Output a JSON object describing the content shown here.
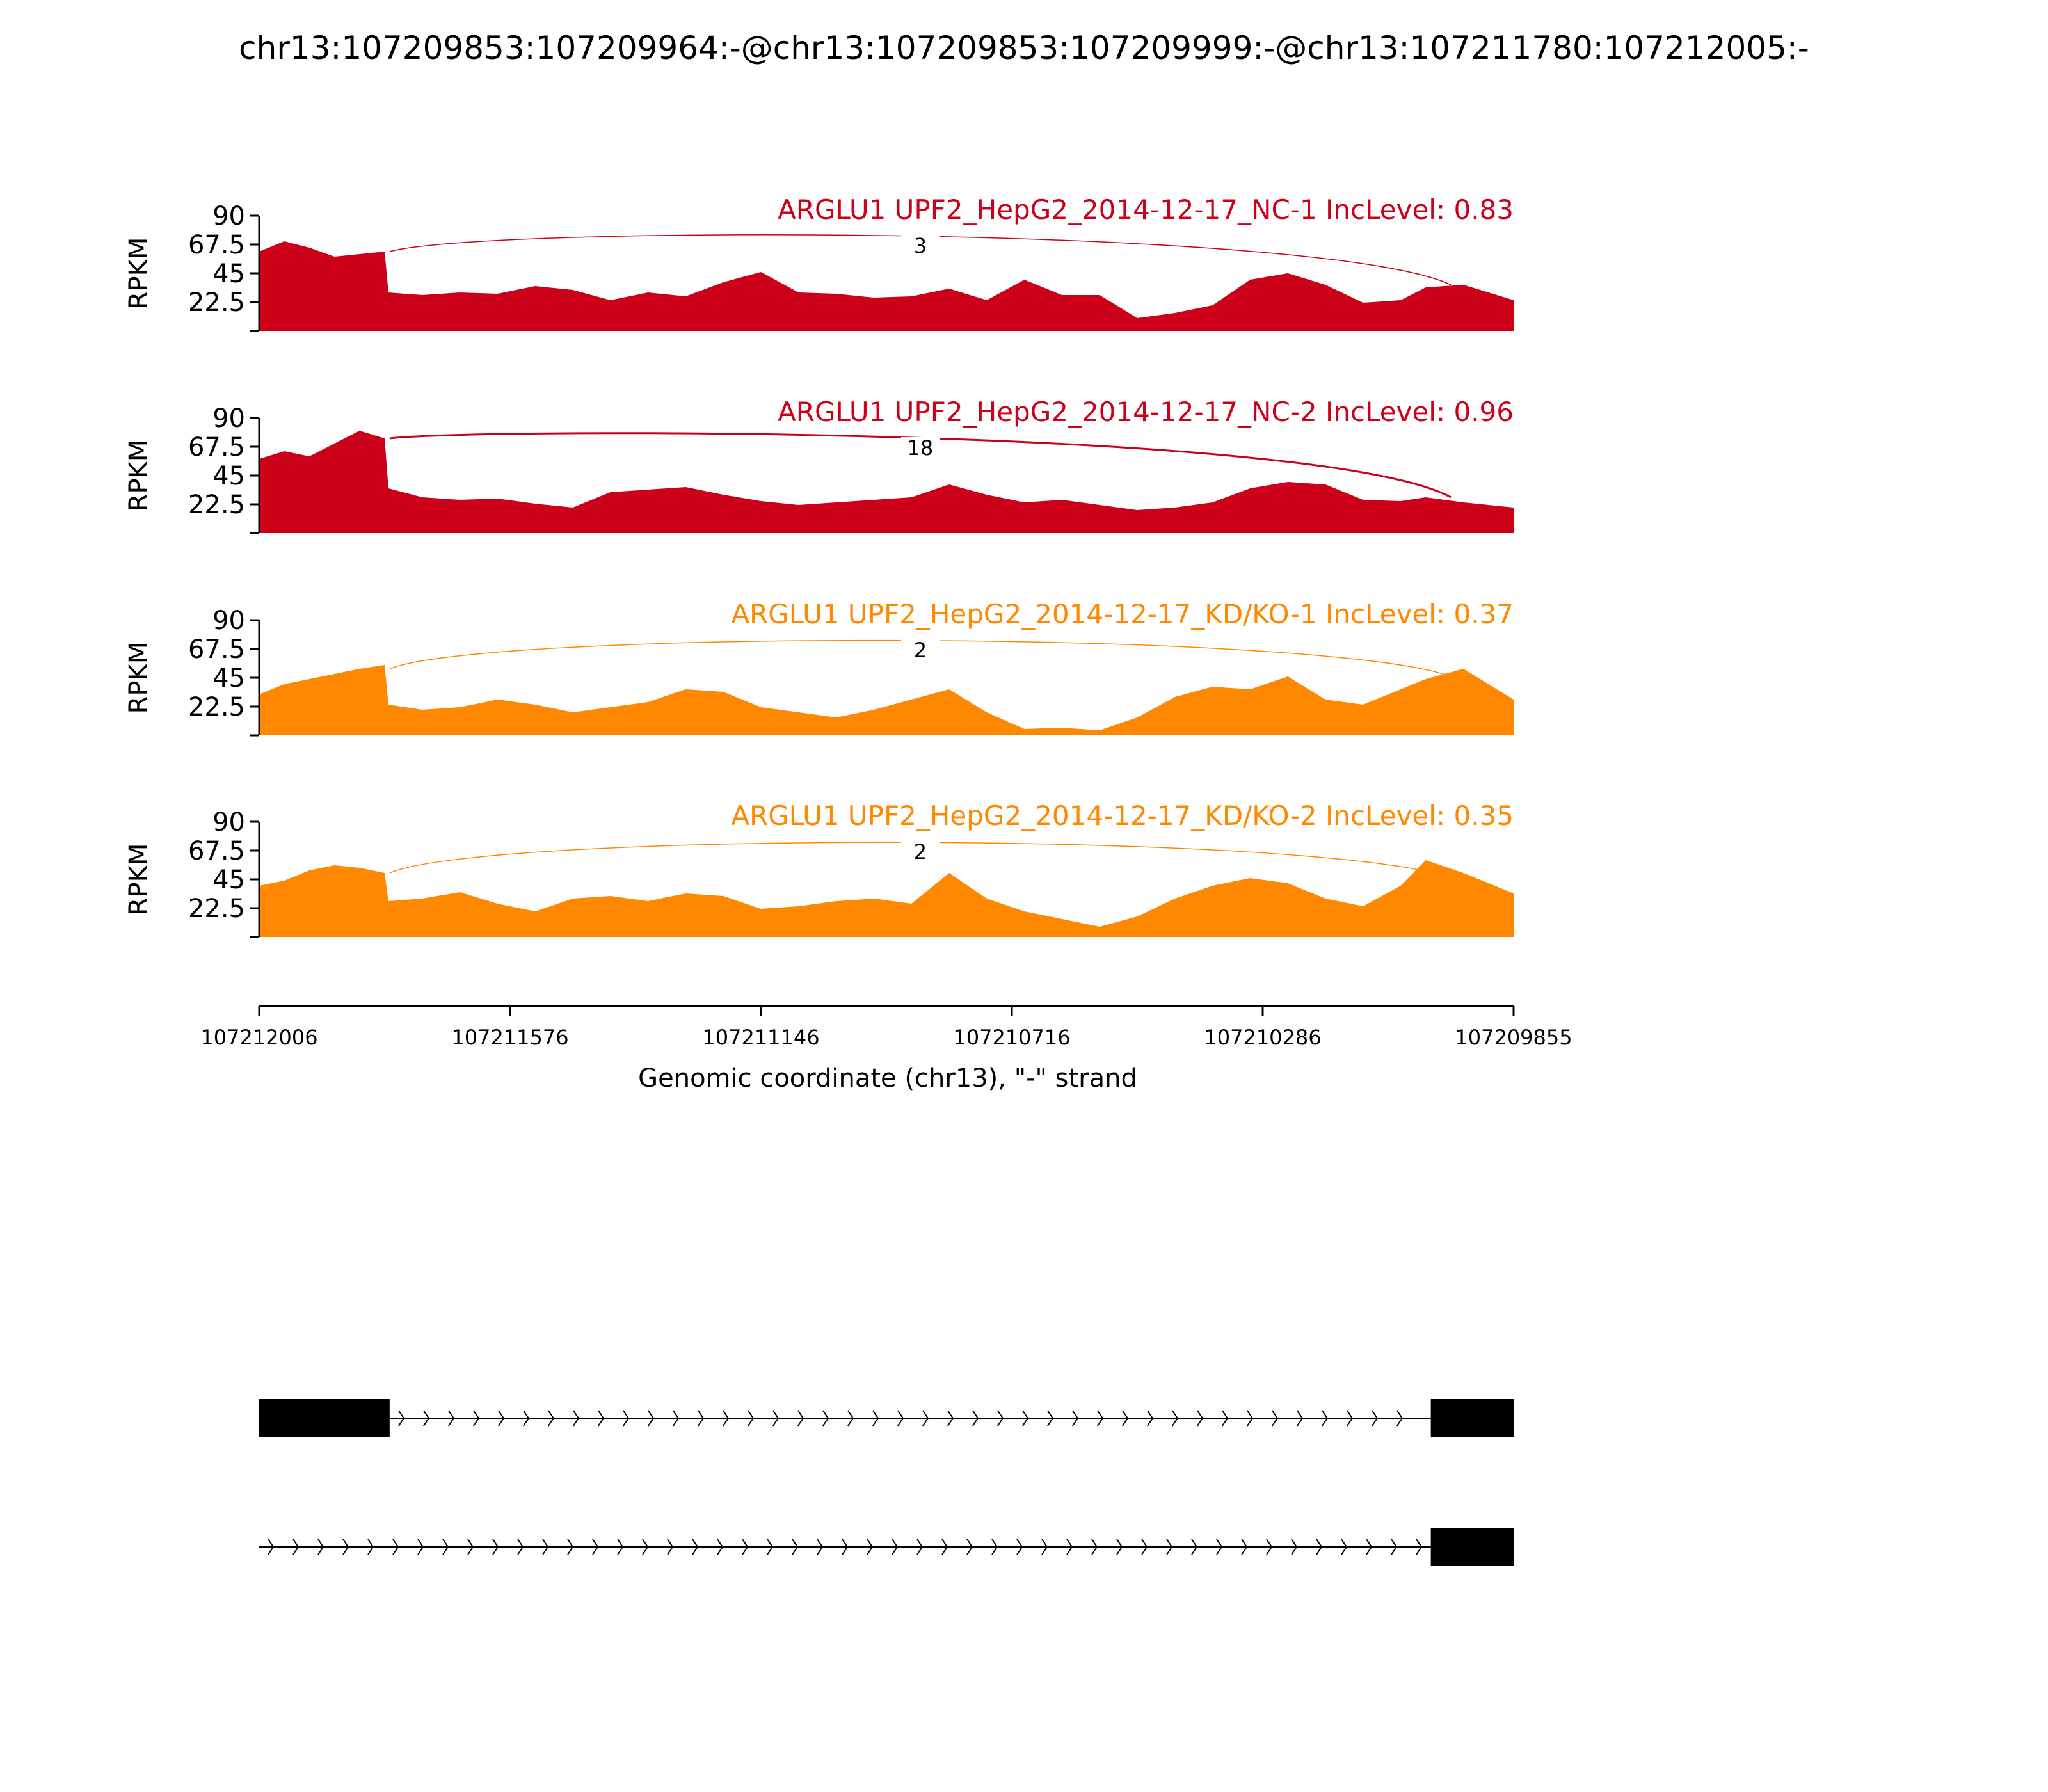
{
  "title": "chr13:107209853:107209964:-@chr13:107209853:107209999:-@chr13:107211780:107212005:-",
  "colors": {
    "nc": "#cc0018",
    "kd": "#ff8800",
    "axis": "#000000"
  },
  "chart_data": {
    "type": "area",
    "title": "chr13:107209853:107209964:-@chr13:107209853:107209999:-@chr13:107211780:107212005:-",
    "xlabel": "Genomic coordinate (chr13), \"-\" strand",
    "ylabel": "RPKM",
    "x_tick_labels": [
      "107212006",
      "107211576",
      "107211146",
      "107210716",
      "107210286",
      "107209855"
    ],
    "x_positions_as_coordinates": [
      107212006,
      107211576,
      107211146,
      107210716,
      107210286,
      107209855
    ],
    "y_ticks": [
      "90",
      "67.5",
      "45",
      "22.5"
    ],
    "ylim": [
      0,
      90
    ],
    "tracks": [
      {
        "label": "ARGLU1 UPF2_HepG2_2014-12-17_NC-1 IncLevel: 0.83",
        "color_key": "nc",
        "junction_count": "3",
        "x": [
          0,
          0.02,
          0.04,
          0.06,
          0.08,
          0.1,
          0.103,
          0.13,
          0.16,
          0.19,
          0.22,
          0.25,
          0.28,
          0.31,
          0.34,
          0.37,
          0.4,
          0.43,
          0.46,
          0.49,
          0.52,
          0.55,
          0.58,
          0.61,
          0.64,
          0.67,
          0.7,
          0.73,
          0.76,
          0.79,
          0.82,
          0.85,
          0.88,
          0.91,
          0.93,
          0.96,
          1.0
        ],
        "values": [
          62,
          70,
          65,
          58,
          60,
          62,
          30,
          28,
          30,
          29,
          35,
          32,
          24,
          30,
          27,
          38,
          46,
          30,
          29,
          26,
          27,
          33,
          24,
          40,
          28,
          28,
          10,
          14,
          20,
          40,
          45,
          36,
          22,
          24,
          34,
          36,
          24
        ]
      },
      {
        "label": "ARGLU1 UPF2_HepG2_2014-12-17_NC-2 IncLevel: 0.96",
        "color_key": "nc",
        "junction_count": "18",
        "x": [
          0,
          0.02,
          0.04,
          0.06,
          0.08,
          0.1,
          0.103,
          0.13,
          0.16,
          0.19,
          0.22,
          0.25,
          0.28,
          0.31,
          0.34,
          0.37,
          0.4,
          0.43,
          0.46,
          0.49,
          0.52,
          0.55,
          0.58,
          0.61,
          0.64,
          0.67,
          0.7,
          0.73,
          0.76,
          0.79,
          0.82,
          0.85,
          0.88,
          0.91,
          0.93,
          0.96,
          1.0
        ],
        "values": [
          58,
          64,
          60,
          70,
          80,
          74,
          35,
          28,
          26,
          27,
          23,
          20,
          32,
          34,
          36,
          30,
          25,
          22,
          24,
          26,
          28,
          38,
          30,
          24,
          26,
          22,
          18,
          20,
          24,
          35,
          40,
          38,
          26,
          25,
          28,
          24,
          20
        ]
      },
      {
        "label": "ARGLU1 UPF2_HepG2_2014-12-17_KD/KO-1 IncLevel: 0.37",
        "color_key": "kd",
        "junction_count": "2",
        "x": [
          0,
          0.02,
          0.04,
          0.06,
          0.08,
          0.1,
          0.103,
          0.13,
          0.16,
          0.19,
          0.22,
          0.25,
          0.28,
          0.31,
          0.34,
          0.37,
          0.4,
          0.43,
          0.46,
          0.49,
          0.52,
          0.55,
          0.58,
          0.61,
          0.64,
          0.67,
          0.7,
          0.73,
          0.76,
          0.79,
          0.82,
          0.85,
          0.88,
          0.91,
          0.93,
          0.96,
          1.0
        ],
        "values": [
          32,
          40,
          44,
          48,
          52,
          55,
          24,
          20,
          22,
          28,
          24,
          18,
          22,
          26,
          36,
          34,
          22,
          18,
          14,
          20,
          28,
          36,
          18,
          5,
          6,
          4,
          14,
          30,
          38,
          36,
          46,
          28,
          24,
          36,
          44,
          52,
          28
        ]
      },
      {
        "label": "ARGLU1 UPF2_HepG2_2014-12-17_KD/KO-2 IncLevel: 0.35",
        "color_key": "kd",
        "junction_count": "2",
        "x": [
          0,
          0.02,
          0.04,
          0.06,
          0.08,
          0.1,
          0.103,
          0.13,
          0.16,
          0.19,
          0.22,
          0.25,
          0.28,
          0.31,
          0.34,
          0.37,
          0.4,
          0.43,
          0.46,
          0.49,
          0.52,
          0.55,
          0.58,
          0.61,
          0.64,
          0.67,
          0.7,
          0.73,
          0.76,
          0.79,
          0.82,
          0.85,
          0.88,
          0.91,
          0.93,
          0.96,
          1.0
        ],
        "values": [
          40,
          44,
          52,
          56,
          54,
          50,
          28,
          30,
          35,
          26,
          20,
          30,
          32,
          28,
          34,
          32,
          22,
          24,
          28,
          30,
          26,
          50,
          30,
          20,
          14,
          8,
          16,
          30,
          40,
          46,
          42,
          30,
          24,
          40,
          60,
          50,
          34
        ]
      }
    ],
    "gene_models": [
      {
        "exons": [
          [
            0,
            0.104
          ],
          [
            0.934,
            1.0
          ]
        ],
        "intron": [
          0.104,
          0.934
        ]
      },
      {
        "exons": [
          [
            0.934,
            1.0
          ]
        ],
        "intron": [
          0,
          0.934
        ]
      }
    ]
  }
}
